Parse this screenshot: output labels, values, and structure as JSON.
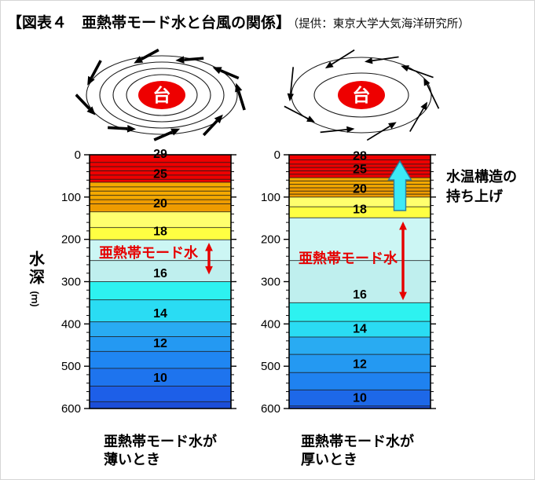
{
  "title": {
    "main": "【図表４　亜熱帯モード水と台風の関係】",
    "credit": "（提供：東京大学大気海洋研究所）"
  },
  "typhoon": {
    "eye_label": "台"
  },
  "depth_axis": {
    "label": "水深",
    "unit": "(ｍ)"
  },
  "colors": {
    "accent_red": "#e60000",
    "contour_line": "#1c1c1c",
    "typhoon_eye": "#ee0000",
    "uplift_fill": "#3deaf5",
    "uplift_stroke": "#2e7e9e",
    "axis_black": "#000000"
  },
  "chart_data": {
    "type": "area",
    "subtype": "layered-isotherm-depth-profile",
    "title": "亜熱帯モード水と台風の関係",
    "ylabel": "水深(m)",
    "ylim": [
      0,
      600
    ],
    "y_major_ticks": [
      0,
      100,
      200,
      300,
      400,
      500,
      600
    ],
    "y_minor_step": 20,
    "grid": false,
    "panels": [
      {
        "id": "thin-mode-water",
        "caption_lines": [
          "亜熱帯モード水が",
          "薄いとき"
        ],
        "mode_water": {
          "label": "亜熱帯モード水",
          "extent_m": [
            208,
            283
          ]
        },
        "isotherm_labels": [
          {
            "temp": "29",
            "depth_m": 18
          },
          {
            "temp": "25",
            "depth_m": 65
          },
          {
            "temp": "20",
            "depth_m": 135
          },
          {
            "temp": "18",
            "depth_m": 201
          },
          {
            "temp": "16",
            "depth_m": 300
          },
          {
            "temp": "14",
            "depth_m": 395
          },
          {
            "temp": "12",
            "depth_m": 465
          },
          {
            "temp": "10",
            "depth_m": 547
          }
        ],
        "contour_depths_m": [
          18,
          28,
          38,
          48,
          58,
          65,
          76,
          86,
          96,
          106,
          116,
          135,
          172,
          201,
          250,
          300,
          343,
          395,
          430,
          465,
          505,
          547,
          584
        ],
        "bands": [
          {
            "from_m": 0,
            "to_m": 65,
            "color": "#ee0000"
          },
          {
            "from_m": 65,
            "to_m": 106,
            "color": "#f4a900"
          },
          {
            "from_m": 106,
            "to_m": 135,
            "color": "#ee9b00"
          },
          {
            "from_m": 135,
            "to_m": 172,
            "color": "#ffff6e"
          },
          {
            "from_m": 172,
            "to_m": 201,
            "color": "#ffff42"
          },
          {
            "from_m": 201,
            "to_m": 250,
            "color": "#ccf6f4"
          },
          {
            "from_m": 250,
            "to_m": 300,
            "color": "#bfefee"
          },
          {
            "from_m": 300,
            "to_m": 343,
            "color": "#2df2f0"
          },
          {
            "from_m": 343,
            "to_m": 395,
            "color": "#2adcf3"
          },
          {
            "from_m": 395,
            "to_m": 430,
            "color": "#29abf2"
          },
          {
            "from_m": 430,
            "to_m": 465,
            "color": "#2499f2"
          },
          {
            "from_m": 465,
            "to_m": 505,
            "color": "#1f86f2"
          },
          {
            "from_m": 505,
            "to_m": 547,
            "color": "#1e74ee"
          },
          {
            "from_m": 547,
            "to_m": 584,
            "color": "#1d5fe8"
          },
          {
            "from_m": 584,
            "to_m": 600,
            "color": "#1b4ed8"
          }
        ]
      },
      {
        "id": "thick-mode-water",
        "caption_lines": [
          "亜熱帯モード水が",
          "厚いとき"
        ],
        "mode_water": {
          "label": "亜熱帯モード水",
          "extent_m": [
            158,
            344
          ]
        },
        "uplift": {
          "lines": [
            "水温構造の",
            "持ち上げ"
          ]
        },
        "isotherm_labels": [
          {
            "temp": "28",
            "depth_m": 22
          },
          {
            "temp": "25",
            "depth_m": 54
          },
          {
            "temp": "20",
            "depth_m": 100
          },
          {
            "temp": "18",
            "depth_m": 149
          },
          {
            "temp": "16",
            "depth_m": 350
          },
          {
            "temp": "14",
            "depth_m": 431
          },
          {
            "temp": "12",
            "depth_m": 515
          },
          {
            "temp": "10",
            "depth_m": 594
          }
        ],
        "contour_depths_m": [
          12,
          22,
          30,
          38,
          46,
          54,
          62,
          70,
          78,
          86,
          93,
          100,
          123,
          149,
          250,
          350,
          394,
          431,
          472,
          515,
          556,
          594
        ],
        "bands": [
          {
            "from_m": 0,
            "to_m": 54,
            "color": "#ee0000"
          },
          {
            "from_m": 54,
            "to_m": 78,
            "color": "#f4a900"
          },
          {
            "from_m": 78,
            "to_m": 100,
            "color": "#ee9b00"
          },
          {
            "from_m": 100,
            "to_m": 123,
            "color": "#ffff6e"
          },
          {
            "from_m": 123,
            "to_m": 149,
            "color": "#ffff42"
          },
          {
            "from_m": 149,
            "to_m": 250,
            "color": "#ccf6f4"
          },
          {
            "from_m": 250,
            "to_m": 350,
            "color": "#bfefee"
          },
          {
            "from_m": 350,
            "to_m": 394,
            "color": "#2df2f0"
          },
          {
            "from_m": 394,
            "to_m": 431,
            "color": "#2adcf3"
          },
          {
            "from_m": 431,
            "to_m": 472,
            "color": "#29abf2"
          },
          {
            "from_m": 472,
            "to_m": 515,
            "color": "#2499f2"
          },
          {
            "from_m": 515,
            "to_m": 556,
            "color": "#1f82f0"
          },
          {
            "from_m": 556,
            "to_m": 594,
            "color": "#1d68e8"
          },
          {
            "from_m": 594,
            "to_m": 600,
            "color": "#1b4ed8"
          }
        ]
      }
    ]
  }
}
